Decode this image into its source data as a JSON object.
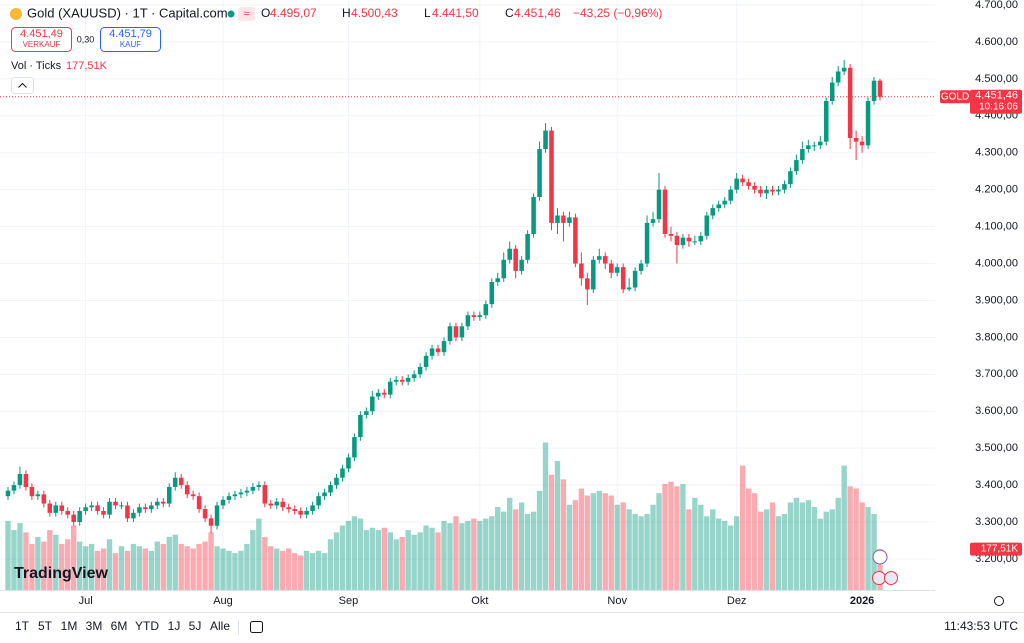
{
  "header": {
    "symbol": "Gold (XAUUSD) · 1T · Capital.com",
    "o_label": "O",
    "o_value": "4.495,07",
    "h_label": "H",
    "h_value": "4.500,43",
    "l_label": "L",
    "l_value": "4.441,50",
    "c_label": "C",
    "c_value": "4.451,46",
    "change": "−43,25 (−0,96%)",
    "sell_price": "4.451,49",
    "sell_label": "VERKAUF",
    "spread": "0,30",
    "buy_price": "4.451,79",
    "buy_label": "KAUF",
    "vol_label": "Vol · Ticks",
    "vol_value": "177,51K",
    "price_tag_name": "GOLD",
    "price_tag_value": "4.451,46",
    "price_tag_timer": "10:16:06",
    "logo": "TradingView"
  },
  "toolbar": {
    "ranges": [
      "1T",
      "5T",
      "1M",
      "3M",
      "6M",
      "YTD",
      "1J",
      "5J",
      "Alle"
    ],
    "clock": "11:43:53 UTC"
  },
  "chart_data": {
    "type": "candlestick",
    "up_color": "#089981",
    "down_color": "#f23645",
    "grid": true,
    "ylim": [
      3116,
      4713.5
    ],
    "yticks": [
      {
        "value": 3200,
        "label": "3.200,00"
      },
      {
        "value": 3300,
        "label": "3.300,00"
      },
      {
        "value": 3400,
        "label": "3.400,00"
      },
      {
        "value": 3500,
        "label": "3.500,00"
      },
      {
        "value": 3600,
        "label": "3.600,00"
      },
      {
        "value": 3700,
        "label": "3.700,00"
      },
      {
        "value": 3800,
        "label": "3.800,00"
      },
      {
        "value": 3900,
        "label": "3.900,00"
      },
      {
        "value": 4000,
        "label": "4.000,00"
      },
      {
        "value": 4100,
        "label": "4.100,00"
      },
      {
        "value": 4200,
        "label": "4.200,00"
      },
      {
        "value": 4300,
        "label": "4.300,00"
      },
      {
        "value": 4400,
        "label": "4.400,00"
      },
      {
        "value": 4500,
        "label": "4.500,00"
      },
      {
        "value": 4600,
        "label": "4.600,00"
      },
      {
        "value": 4700,
        "label": "4.700,00"
      }
    ],
    "categories": [
      null,
      null,
      null,
      null,
      null,
      null,
      null,
      null,
      null,
      null,
      null,
      null,
      null,
      "Jul",
      null,
      null,
      null,
      null,
      null,
      null,
      null,
      null,
      null,
      null,
      null,
      null,
      null,
      null,
      null,
      null,
      null,
      null,
      null,
      null,
      null,
      null,
      "Aug",
      null,
      null,
      null,
      null,
      null,
      null,
      null,
      null,
      null,
      null,
      null,
      null,
      null,
      null,
      null,
      null,
      null,
      null,
      null,
      null,
      "Sep",
      null,
      null,
      null,
      null,
      null,
      null,
      null,
      null,
      null,
      null,
      null,
      null,
      null,
      null,
      null,
      null,
      null,
      null,
      null,
      null,
      null,
      "Okt",
      null,
      null,
      null,
      null,
      null,
      null,
      null,
      null,
      null,
      null,
      null,
      null,
      null,
      null,
      null,
      null,
      null,
      null,
      null,
      null,
      null,
      null,
      "Nov",
      null,
      null,
      null,
      null,
      null,
      null,
      null,
      null,
      null,
      null,
      null,
      null,
      null,
      null,
      null,
      null,
      null,
      null,
      null,
      "Dez",
      null,
      null,
      null,
      null,
      null,
      null,
      null,
      null,
      null,
      null,
      null,
      null,
      null,
      null,
      null,
      null,
      null,
      null,
      null,
      null,
      "2026",
      null,
      null,
      null
    ],
    "open": [
      3370,
      3385,
      3400,
      3430,
      3395,
      3370,
      3375,
      3350,
      3325,
      3345,
      3330,
      3320,
      3300,
      3330,
      3340,
      3345,
      3330,
      3320,
      3355,
      3345,
      3345,
      3310,
      3325,
      3340,
      3335,
      3345,
      3355,
      3350,
      3395,
      3420,
      3400,
      3375,
      3370,
      3335,
      3310,
      3290,
      3345,
      3360,
      3370,
      3375,
      3380,
      3385,
      3395,
      3400,
      3350,
      3345,
      3355,
      3340,
      3335,
      3330,
      3320,
      3330,
      3345,
      3370,
      3380,
      3400,
      3420,
      3445,
      3475,
      3530,
      3590,
      3600,
      3640,
      3650,
      3645,
      3680,
      3685,
      3680,
      3690,
      3700,
      3720,
      3750,
      3770,
      3760,
      3790,
      3830,
      3800,
      3830,
      3860,
      3855,
      3860,
      3890,
      3950,
      3960,
      4010,
      4040,
      3980,
      4010,
      4080,
      4180,
      4310,
      4360,
      4110,
      4130,
      4110,
      4125,
      4000,
      3960,
      3930,
      4010,
      4020,
      4000,
      3975,
      3990,
      3930,
      3935,
      3980,
      4000,
      4110,
      4120,
      4200,
      4080,
      4075,
      4050,
      4070,
      4060,
      4060,
      4075,
      4130,
      4150,
      4160,
      4170,
      4200,
      4230,
      4220,
      4210,
      4200,
      4190,
      4200,
      4195,
      4200,
      4215,
      4250,
      4280,
      4310,
      4320,
      4320,
      4330,
      4440,
      4490,
      4520,
      4530,
      4340,
      4330,
      4320,
      4440,
      4495.07
    ],
    "high": [
      3395,
      3410,
      3450,
      3440,
      3405,
      3385,
      3385,
      3360,
      3355,
      3355,
      3340,
      3330,
      3340,
      3350,
      3355,
      3355,
      3340,
      3365,
      3365,
      3355,
      3355,
      3335,
      3350,
      3350,
      3355,
      3365,
      3365,
      3405,
      3435,
      3430,
      3410,
      3385,
      3380,
      3345,
      3320,
      3355,
      3370,
      3380,
      3385,
      3390,
      3395,
      3405,
      3410,
      3410,
      3360,
      3365,
      3365,
      3350,
      3345,
      3340,
      3340,
      3355,
      3380,
      3390,
      3410,
      3430,
      3455,
      3485,
      3540,
      3600,
      3610,
      3655,
      3660,
      3660,
      3690,
      3695,
      3695,
      3700,
      3710,
      3730,
      3760,
      3780,
      3780,
      3800,
      3840,
      3840,
      3840,
      3870,
      3870,
      3870,
      3900,
      3960,
      3975,
      4030,
      4060,
      4050,
      4020,
      4090,
      4190,
      4330,
      4380,
      4370,
      4150,
      4140,
      4140,
      4135,
      4030,
      3975,
      4020,
      4040,
      4030,
      4010,
      4000,
      4000,
      3960,
      3990,
      4010,
      4130,
      4140,
      4245,
      4210,
      4100,
      4085,
      4080,
      4080,
      4075,
      4085,
      4140,
      4160,
      4170,
      4180,
      4210,
      4245,
      4240,
      4230,
      4220,
      4210,
      4210,
      4210,
      4210,
      4225,
      4260,
      4295,
      4330,
      4335,
      4330,
      4345,
      4450,
      4505,
      4535,
      4551,
      4540,
      4360,
      4345,
      4450,
      4505,
      4500.43
    ],
    "low": [
      3360,
      3375,
      3390,
      3385,
      3360,
      3360,
      3340,
      3315,
      3315,
      3320,
      3310,
      3290,
      3290,
      3320,
      3330,
      3320,
      3310,
      3310,
      3335,
      3335,
      3300,
      3300,
      3315,
      3325,
      3325,
      3335,
      3340,
      3340,
      3385,
      3390,
      3365,
      3360,
      3325,
      3300,
      3270,
      3280,
      3335,
      3350,
      3360,
      3365,
      3370,
      3375,
      3385,
      3340,
      3335,
      3335,
      3330,
      3325,
      3320,
      3310,
      3310,
      3320,
      3335,
      3360,
      3370,
      3390,
      3410,
      3435,
      3465,
      3520,
      3580,
      3590,
      3630,
      3635,
      3635,
      3670,
      3670,
      3670,
      3680,
      3690,
      3710,
      3740,
      3750,
      3750,
      3780,
      3790,
      3790,
      3820,
      3845,
      3845,
      3850,
      3880,
      3940,
      3950,
      4000,
      3960,
      3970,
      4000,
      4070,
      4170,
      4300,
      4090,
      4080,
      4060,
      4100,
      3990,
      3940,
      3888,
      3920,
      4000,
      3985,
      3960,
      3965,
      3920,
      3925,
      3925,
      3970,
      3990,
      4100,
      4110,
      4070,
      4060,
      4000,
      4040,
      4045,
      4050,
      4050,
      4065,
      4120,
      4140,
      4150,
      4160,
      4190,
      4210,
      4200,
      4190,
      4180,
      4175,
      4185,
      4185,
      4190,
      4205,
      4240,
      4270,
      4300,
      4305,
      4310,
      4320,
      4430,
      4480,
      4510,
      4310,
      4280,
      4300,
      4310,
      4430,
      4441.5
    ],
    "close": [
      3385,
      3400,
      3430,
      3395,
      3370,
      3375,
      3350,
      3325,
      3345,
      3330,
      3320,
      3300,
      3330,
      3340,
      3345,
      3330,
      3320,
      3355,
      3345,
      3345,
      3310,
      3325,
      3340,
      3335,
      3345,
      3355,
      3350,
      3395,
      3420,
      3400,
      3375,
      3370,
      3335,
      3310,
      3290,
      3345,
      3360,
      3370,
      3375,
      3380,
      3385,
      3395,
      3400,
      3350,
      3345,
      3355,
      3340,
      3335,
      3330,
      3320,
      3330,
      3345,
      3370,
      3380,
      3400,
      3420,
      3445,
      3475,
      3530,
      3590,
      3600,
      3640,
      3650,
      3645,
      3680,
      3685,
      3680,
      3690,
      3700,
      3720,
      3750,
      3770,
      3760,
      3790,
      3830,
      3800,
      3830,
      3860,
      3855,
      3860,
      3890,
      3950,
      3960,
      4010,
      4040,
      3980,
      4010,
      4080,
      4180,
      4310,
      4360,
      4110,
      4130,
      4110,
      4125,
      4000,
      3960,
      3930,
      4010,
      4020,
      4000,
      3975,
      3990,
      3930,
      3935,
      3980,
      4000,
      4110,
      4120,
      4200,
      4080,
      4075,
      4050,
      4070,
      4060,
      4060,
      4075,
      4130,
      4150,
      4160,
      4170,
      4200,
      4230,
      4220,
      4210,
      4200,
      4190,
      4200,
      4195,
      4200,
      4215,
      4250,
      4280,
      4310,
      4320,
      4320,
      4330,
      4440,
      4490,
      4520,
      4530,
      4340,
      4330,
      4320,
      4440,
      4495.07,
      4451.46
    ],
    "volume": [
      300000,
      260000,
      290000,
      250000,
      200000,
      230000,
      210000,
      260000,
      240000,
      200000,
      220000,
      280000,
      210000,
      190000,
      200000,
      170000,
      180000,
      220000,
      160000,
      190000,
      170000,
      200000,
      190000,
      180000,
      170000,
      210000,
      200000,
      230000,
      240000,
      200000,
      190000,
      180000,
      200000,
      210000,
      250000,
      190000,
      180000,
      170000,
      160000,
      170000,
      200000,
      260000,
      310000,
      230000,
      190000,
      180000,
      170000,
      180000,
      160000,
      150000,
      170000,
      160000,
      170000,
      160000,
      220000,
      250000,
      280000,
      300000,
      320000,
      310000,
      260000,
      270000,
      260000,
      270000,
      250000,
      220000,
      230000,
      260000,
      240000,
      250000,
      280000,
      270000,
      250000,
      300000,
      290000,
      320000,
      290000,
      300000,
      310000,
      300000,
      310000,
      320000,
      360000,
      340000,
      400000,
      350000,
      380000,
      330000,
      340000,
      430000,
      640000,
      500000,
      560000,
      480000,
      370000,
      390000,
      440000,
      410000,
      420000,
      430000,
      420000,
      410000,
      370000,
      380000,
      350000,
      330000,
      320000,
      330000,
      370000,
      420000,
      460000,
      470000,
      450000,
      460000,
      350000,
      400000,
      370000,
      320000,
      350000,
      310000,
      300000,
      280000,
      320000,
      540000,
      440000,
      420000,
      340000,
      350000,
      380000,
      320000,
      330000,
      380000,
      400000,
      380000,
      390000,
      360000,
      310000,
      340000,
      350000,
      400000,
      540000,
      450000,
      440000,
      380000,
      360000,
      330000,
      177510
    ]
  }
}
